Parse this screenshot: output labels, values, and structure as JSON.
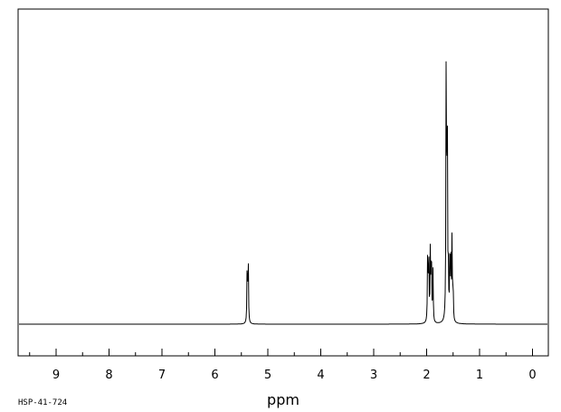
{
  "chart_data": {
    "type": "line",
    "title": "",
    "xlabel": "ppm",
    "ylabel": "",
    "sample_code": "HSP-41-724",
    "x_axis_reversed": true,
    "xlim": [
      9.5,
      -0.3
    ],
    "ylim": [
      -0.12,
      1.12
    ],
    "grid": false,
    "x_ticks": [
      9,
      8,
      7,
      6,
      5,
      4,
      3,
      2,
      1,
      0
    ],
    "series": [
      {
        "peaks": [
          {
            "ppm": 5.39,
            "height": 0.22
          },
          {
            "ppm": 5.37,
            "height": 0.23
          },
          {
            "ppm": 1.98,
            "height": 0.27
          },
          {
            "ppm": 1.96,
            "height": 0.24
          },
          {
            "ppm": 1.93,
            "height": 0.26
          },
          {
            "ppm": 1.91,
            "height": 0.27
          },
          {
            "ppm": 1.88,
            "height": 0.18
          },
          {
            "ppm": 1.63,
            "height": 1.0
          },
          {
            "ppm": 1.61,
            "height": 0.77
          },
          {
            "ppm": 1.59,
            "height": 0.14
          },
          {
            "ppm": 1.56,
            "height": 0.29
          },
          {
            "ppm": 1.54,
            "height": 0.2
          },
          {
            "ppm": 1.52,
            "height": 0.29
          },
          {
            "ppm": 1.5,
            "height": 0.13
          }
        ]
      }
    ]
  }
}
